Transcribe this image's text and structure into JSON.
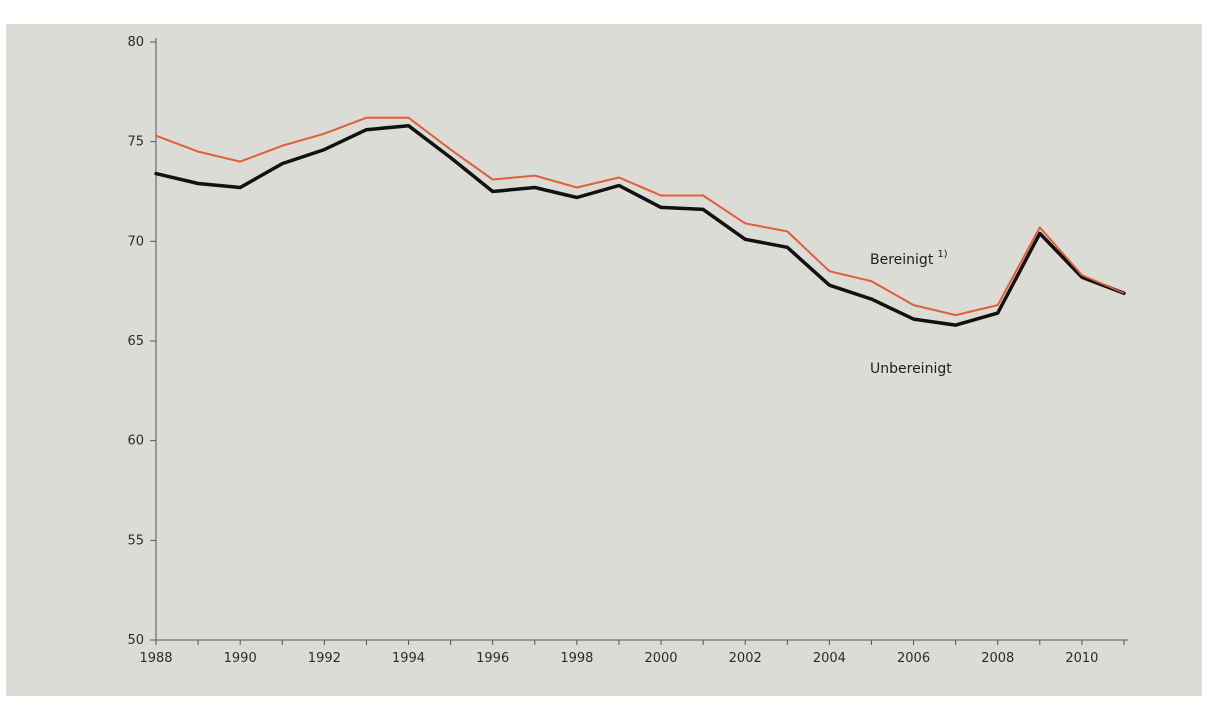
{
  "chart_data": {
    "type": "line",
    "title": "",
    "xlabel": "",
    "ylabel": "",
    "xlim": [
      1988,
      2011
    ],
    "ylim": [
      50,
      80
    ],
    "yticks": [
      50,
      55,
      60,
      65,
      70,
      75,
      80
    ],
    "xticks": [
      1988,
      1990,
      1992,
      1994,
      1996,
      1998,
      2000,
      2002,
      2004,
      2006,
      2008,
      2010
    ],
    "grid": false,
    "legend": "inline",
    "x": [
      1988,
      1989,
      1990,
      1991,
      1992,
      1993,
      1994,
      1995,
      1996,
      1997,
      1998,
      1999,
      2000,
      2001,
      2002,
      2003,
      2004,
      2005,
      2006,
      2007,
      2008,
      2009,
      2010,
      2011
    ],
    "series": [
      {
        "name": "Bereinigt",
        "label_suffix": "1)",
        "color": "#e0603c",
        "values": [
          75.3,
          74.5,
          74.0,
          74.8,
          75.4,
          76.2,
          76.2,
          74.6,
          73.1,
          73.3,
          72.7,
          73.2,
          72.3,
          72.3,
          70.9,
          70.5,
          68.5,
          68.0,
          66.8,
          66.3,
          66.8,
          70.7,
          68.3,
          67.4
        ]
      },
      {
        "name": "Unbereinigt",
        "color": "#111111",
        "values": [
          73.4,
          72.9,
          72.7,
          73.9,
          74.6,
          75.6,
          75.8,
          74.2,
          72.5,
          72.7,
          72.2,
          72.8,
          71.7,
          71.6,
          70.1,
          69.7,
          67.8,
          67.1,
          66.1,
          65.8,
          66.4,
          70.4,
          68.2,
          67.4
        ]
      }
    ]
  }
}
